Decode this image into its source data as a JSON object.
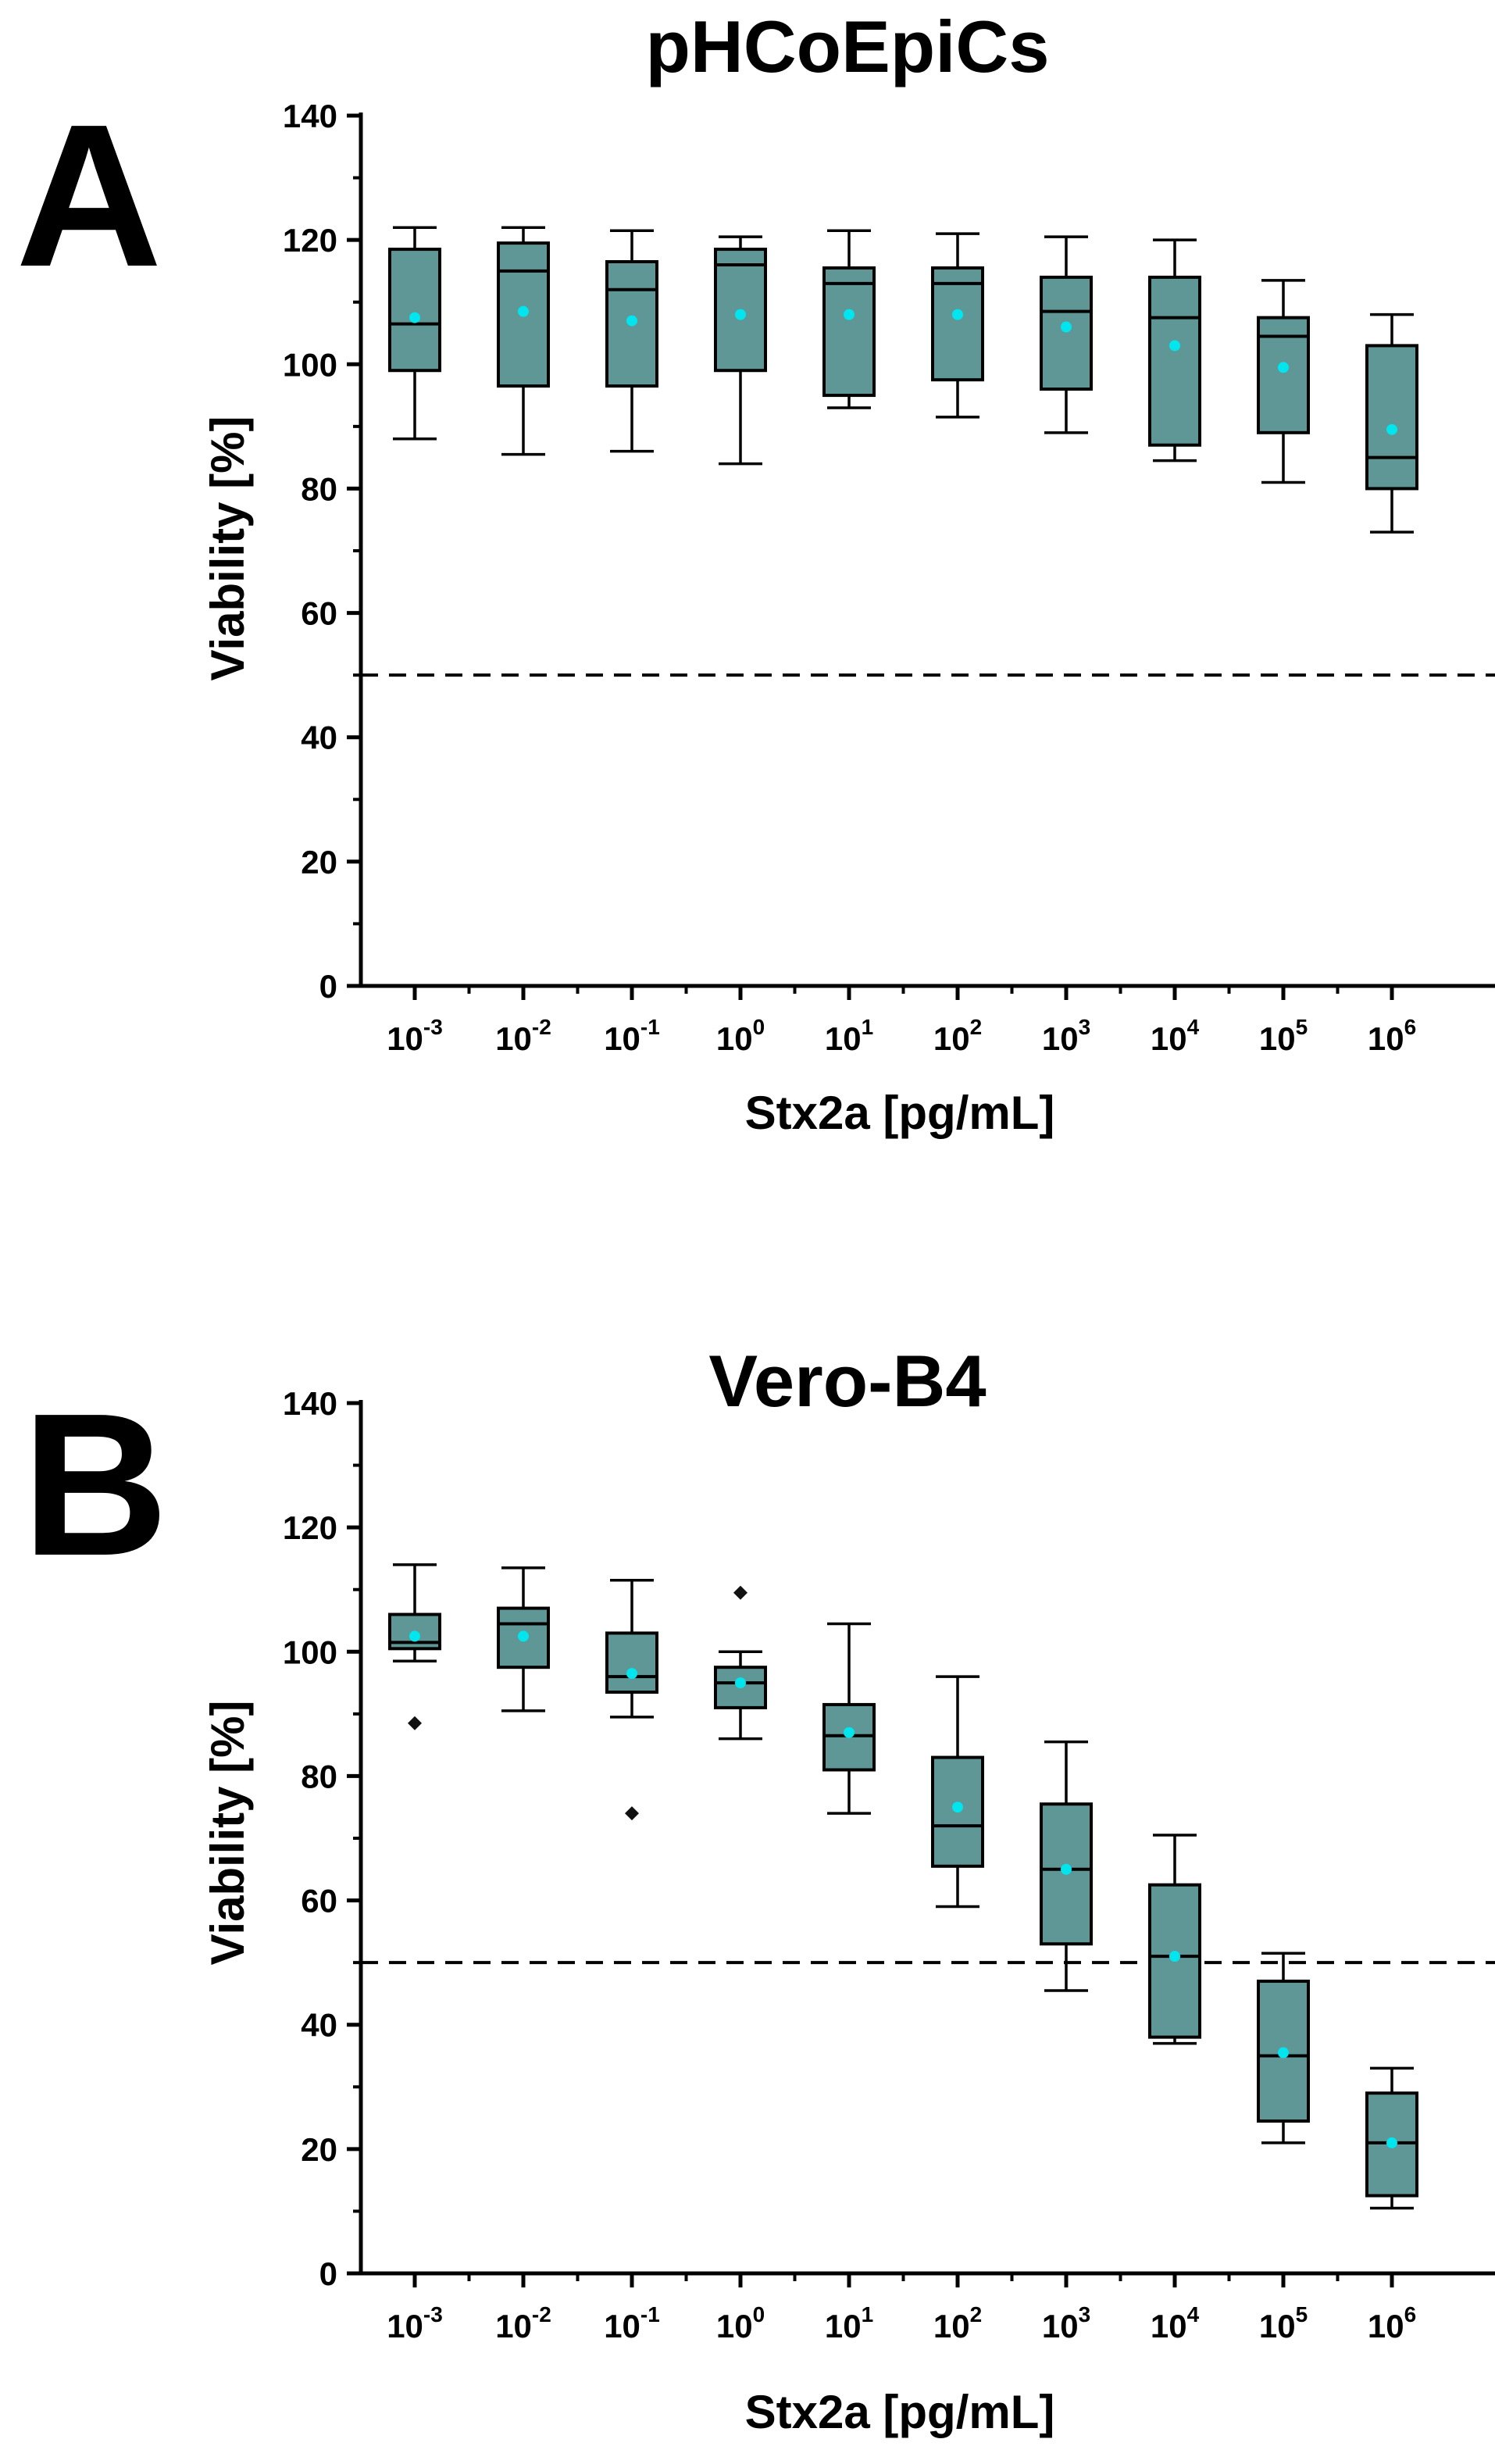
{
  "colors": {
    "box_fill": "#5f9696",
    "mean_marker": "#00e5ee",
    "outlier": "#111111",
    "reference_line": "#000000"
  },
  "chart_data": [
    {
      "type": "box",
      "panel_label": "A",
      "title": "pHCoEpiCs",
      "xlabel": "Stx2a [pg/mL]",
      "ylabel": "Viability [%]",
      "ylim": [
        0,
        140
      ],
      "yticks": [
        0,
        20,
        40,
        60,
        80,
        100,
        120,
        140
      ],
      "reference_line": 50,
      "categories": [
        {
          "base": "10",
          "exp": "-3"
        },
        {
          "base": "10",
          "exp": "-2"
        },
        {
          "base": "10",
          "exp": "-1"
        },
        {
          "base": "10",
          "exp": "0"
        },
        {
          "base": "10",
          "exp": "1"
        },
        {
          "base": "10",
          "exp": "2"
        },
        {
          "base": "10",
          "exp": "3"
        },
        {
          "base": "10",
          "exp": "4"
        },
        {
          "base": "10",
          "exp": "5"
        },
        {
          "base": "10",
          "exp": "6"
        }
      ],
      "boxes": [
        {
          "min": 88,
          "q1": 99,
          "median": 106.5,
          "q3": 118.5,
          "max": 122,
          "mean": 107.5,
          "outliers": []
        },
        {
          "min": 85.5,
          "q1": 96.5,
          "median": 115,
          "q3": 119.5,
          "max": 122,
          "mean": 108.5,
          "outliers": []
        },
        {
          "min": 86,
          "q1": 96.5,
          "median": 112,
          "q3": 116.5,
          "max": 121.5,
          "mean": 107,
          "outliers": []
        },
        {
          "min": 84,
          "q1": 99,
          "median": 116,
          "q3": 118.5,
          "max": 120.5,
          "mean": 108,
          "outliers": []
        },
        {
          "min": 93,
          "q1": 95,
          "median": 113,
          "q3": 115.5,
          "max": 121.5,
          "mean": 108,
          "outliers": []
        },
        {
          "min": 91.5,
          "q1": 97.5,
          "median": 113,
          "q3": 115.5,
          "max": 121,
          "mean": 108,
          "outliers": []
        },
        {
          "min": 89,
          "q1": 96,
          "median": 108.5,
          "q3": 114,
          "max": 120.5,
          "mean": 106,
          "outliers": []
        },
        {
          "min": 84.5,
          "q1": 87,
          "median": 107.5,
          "q3": 114,
          "max": 120,
          "mean": 103,
          "outliers": []
        },
        {
          "min": 81,
          "q1": 89,
          "median": 104.5,
          "q3": 107.5,
          "max": 113.5,
          "mean": 99.5,
          "outliers": []
        },
        {
          "min": 73,
          "q1": 80,
          "median": 85,
          "q3": 103,
          "max": 108,
          "mean": 89.5,
          "outliers": []
        }
      ]
    },
    {
      "type": "box",
      "panel_label": "B",
      "title": "Vero-B4",
      "xlabel": "Stx2a [pg/mL]",
      "ylabel": "Viability [%]",
      "ylim": [
        0,
        140
      ],
      "yticks": [
        0,
        20,
        40,
        60,
        80,
        100,
        120,
        140
      ],
      "reference_line": 50,
      "categories": [
        {
          "base": "10",
          "exp": "-3"
        },
        {
          "base": "10",
          "exp": "-2"
        },
        {
          "base": "10",
          "exp": "-1"
        },
        {
          "base": "10",
          "exp": "0"
        },
        {
          "base": "10",
          "exp": "1"
        },
        {
          "base": "10",
          "exp": "2"
        },
        {
          "base": "10",
          "exp": "3"
        },
        {
          "base": "10",
          "exp": "4"
        },
        {
          "base": "10",
          "exp": "5"
        },
        {
          "base": "10",
          "exp": "6"
        }
      ],
      "boxes": [
        {
          "min": 98.5,
          "q1": 100.5,
          "median": 101.5,
          "q3": 106,
          "max": 114,
          "mean": 102.5,
          "outliers": [
            88.5
          ]
        },
        {
          "min": 90.5,
          "q1": 97.5,
          "median": 104.5,
          "q3": 107,
          "max": 113.5,
          "mean": 102.5,
          "outliers": []
        },
        {
          "min": 89.5,
          "q1": 93.5,
          "median": 96,
          "q3": 103,
          "max": 111.5,
          "mean": 96.5,
          "outliers": [
            74
          ]
        },
        {
          "min": 86,
          "q1": 91,
          "median": 95,
          "q3": 97.5,
          "max": 100,
          "mean": 95,
          "outliers": [
            109.5
          ]
        },
        {
          "min": 74,
          "q1": 81,
          "median": 86.5,
          "q3": 91.5,
          "max": 104.5,
          "mean": 87,
          "outliers": []
        },
        {
          "min": 59,
          "q1": 65.5,
          "median": 72,
          "q3": 83,
          "max": 96,
          "mean": 75,
          "outliers": []
        },
        {
          "min": 45.5,
          "q1": 53,
          "median": 65,
          "q3": 75.5,
          "max": 85.5,
          "mean": 65,
          "outliers": []
        },
        {
          "min": 37,
          "q1": 38,
          "median": 51,
          "q3": 62.5,
          "max": 70.5,
          "mean": 51,
          "outliers": []
        },
        {
          "min": 21,
          "q1": 24.5,
          "median": 35,
          "q3": 47,
          "max": 51.5,
          "mean": 35.5,
          "outliers": []
        },
        {
          "min": 10.5,
          "q1": 12.5,
          "median": 21,
          "q3": 29,
          "max": 33,
          "mean": 21,
          "outliers": []
        }
      ]
    }
  ]
}
